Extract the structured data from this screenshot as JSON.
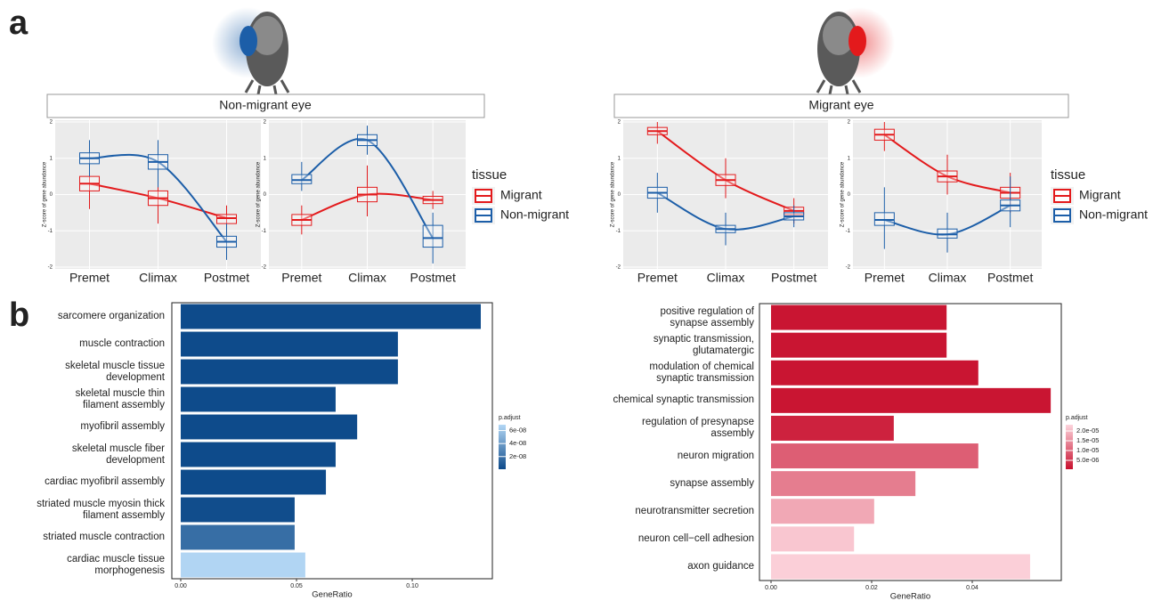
{
  "panel_labels": [
    "a",
    "b"
  ],
  "group_titles": [
    "Non-migrant eye",
    "Migrant eye"
  ],
  "chart_data": [
    {
      "type": "box",
      "categories": [
        "Premet",
        "Climax",
        "Postmet"
      ],
      "y_label": "Z-score of gene abundance",
      "ylim": [
        -2.05,
        2.05
      ],
      "yticks": [
        -2,
        -1,
        0,
        1,
        2
      ],
      "grid": true,
      "background": "#ebebeb",
      "series": [
        {
          "color": "#e31a1c",
          "values": [
            0.3,
            -0.1,
            -0.65
          ],
          "q1": [
            0.1,
            -0.3,
            -0.8
          ],
          "q3": [
            0.5,
            0.1,
            -0.55
          ],
          "whisker_low": [
            -0.4,
            -0.8,
            -1.0
          ],
          "whisker_high": [
            1.0,
            0.6,
            -0.3
          ]
        },
        {
          "color": "#1c5ea8",
          "values": [
            1.0,
            0.9,
            -1.3
          ],
          "q1": [
            0.85,
            0.7,
            -1.45
          ],
          "q3": [
            1.15,
            1.1,
            -1.15
          ],
          "whisker_low": [
            0.5,
            0.2,
            -1.8
          ],
          "whisker_high": [
            1.5,
            1.5,
            -0.8
          ]
        }
      ]
    },
    {
      "type": "box",
      "categories": [
        "Premet",
        "Climax",
        "Postmet"
      ],
      "y_label": "Z-score of gene abundance",
      "ylim": [
        -2.05,
        2.05
      ],
      "yticks": [
        -2,
        -1,
        0,
        1,
        2
      ],
      "grid": true,
      "background": "#ebebeb",
      "legend_title": "tissue",
      "series": [
        {
          "name": "Migrant",
          "color": "#e31a1c",
          "values": [
            -0.7,
            0.0,
            -0.15
          ],
          "q1": [
            -0.85,
            -0.2,
            -0.25
          ],
          "q3": [
            -0.55,
            0.2,
            -0.05
          ],
          "whisker_low": [
            -1.1,
            -0.6,
            -0.4
          ],
          "whisker_high": [
            -0.3,
            0.8,
            0.1
          ]
        },
        {
          "name": "Non-migrant",
          "color": "#1c5ea8",
          "values": [
            0.4,
            1.5,
            -1.2
          ],
          "q1": [
            0.3,
            1.35,
            -1.45
          ],
          "q3": [
            0.55,
            1.65,
            -0.85
          ],
          "whisker_low": [
            0.1,
            1.1,
            -1.9
          ],
          "whisker_high": [
            0.9,
            1.9,
            -0.5
          ]
        }
      ]
    },
    {
      "type": "box",
      "categories": [
        "Premet",
        "Climax",
        "Postmet"
      ],
      "y_label": "Z-score of gene abundance",
      "ylim": [
        -2.05,
        2.05
      ],
      "yticks": [
        -2,
        -1,
        0,
        1,
        2
      ],
      "grid": true,
      "background": "#ebebeb",
      "series": [
        {
          "color": "#e31a1c",
          "values": [
            1.75,
            0.4,
            -0.45
          ],
          "q1": [
            1.65,
            0.25,
            -0.55
          ],
          "q3": [
            1.85,
            0.55,
            -0.35
          ],
          "whisker_low": [
            1.4,
            -0.1,
            -0.8
          ],
          "whisker_high": [
            2.0,
            1.0,
            -0.1
          ]
        },
        {
          "color": "#1c5ea8",
          "values": [
            0.05,
            -0.95,
            -0.6
          ],
          "q1": [
            -0.1,
            -1.05,
            -0.7
          ],
          "q3": [
            0.2,
            -0.85,
            -0.5
          ],
          "whisker_low": [
            -0.5,
            -1.4,
            -0.9
          ],
          "whisker_high": [
            0.6,
            -0.5,
            -0.3
          ]
        }
      ]
    },
    {
      "type": "box",
      "categories": [
        "Premet",
        "Climax",
        "Postmet"
      ],
      "y_label": "Z-score of gene abundance",
      "ylim": [
        -2.05,
        2.05
      ],
      "yticks": [
        -2,
        -1,
        0,
        1,
        2
      ],
      "grid": true,
      "background": "#ebebeb",
      "legend_title": "tissue",
      "series": [
        {
          "name": "Migrant",
          "color": "#e31a1c",
          "values": [
            1.65,
            0.5,
            0.05
          ],
          "q1": [
            1.5,
            0.35,
            -0.1
          ],
          "q3": [
            1.8,
            0.65,
            0.2
          ],
          "whisker_low": [
            1.2,
            0.0,
            -0.5
          ],
          "whisker_high": [
            2.0,
            1.1,
            0.6
          ]
        },
        {
          "name": "Non-migrant",
          "color": "#1c5ea8",
          "values": [
            -0.7,
            -1.1,
            -0.3
          ],
          "q1": [
            -0.85,
            -1.2,
            -0.45
          ],
          "q3": [
            -0.5,
            -0.95,
            -0.15
          ],
          "whisker_low": [
            -1.5,
            -1.6,
            -0.9
          ],
          "whisker_high": [
            0.2,
            -0.5,
            0.5
          ]
        }
      ]
    },
    {
      "type": "barh",
      "categories": [
        "sarcomere organization",
        "muscle contraction",
        "skeletal muscle tissue\ndevelopment",
        "skeletal muscle thin\nfilament assembly",
        "myofibril assembly",
        "skeletal muscle fiber\ndevelopment",
        "cardiac myofibril assembly",
        "striated muscle myosin thick\nfilament assembly",
        "striated muscle contraction",
        "cardiac muscle tissue\nmorphogenesis"
      ],
      "values": [
        0.1296,
        0.0938,
        0.0938,
        0.0669,
        0.0762,
        0.0669,
        0.0627,
        0.0492,
        0.0492,
        0.0538
      ],
      "p_adjust": [
        1e-09,
        1e-09,
        1e-09,
        1e-09,
        1e-09,
        1e-09,
        1e-09,
        2e-09,
        1.8e-08,
        6.8e-08
      ],
      "x_label": "GeneRatio",
      "xlim": [
        -0.00385,
        0.1346
      ],
      "xticks": [
        {
          "value": 0,
          "label": "0.00"
        },
        {
          "value": 0.05,
          "label": "0.05"
        },
        {
          "value": 0.1,
          "label": "0.10"
        }
      ],
      "color_scale": {
        "title": "p.adjust",
        "low": "#0d4a8a",
        "high": "#b3d7f5",
        "lim": [
          5e-10,
          6.9e-08
        ],
        "ticks": [
          {
            "value": 6e-08,
            "label": "6e-08"
          },
          {
            "value": 4e-08,
            "label": "4e-08"
          },
          {
            "value": 2e-08,
            "label": "2e-08"
          }
        ]
      }
    },
    {
      "type": "barh",
      "categories": [
        "positive regulation of\nsynapse assembly",
        "synaptic transmission,\nglutamatergic",
        "modulation of chemical\nsynaptic transmission",
        "chemical synaptic transmission",
        "regulation of presynapse\nassembly",
        "neuron migration",
        "synapse assembly",
        "neurotransmitter secretion",
        "neuron cell−cell adhesion",
        "axon guidance"
      ],
      "values": [
        0.0349,
        0.0349,
        0.0412,
        0.0556,
        0.0244,
        0.0412,
        0.0287,
        0.0205,
        0.0165,
        0.0515
      ],
      "p_adjust": [
        1e-06,
        1e-06,
        1e-06,
        1e-06,
        2.5e-06,
        9.5e-06,
        1.3e-05,
        1.8e-05,
        2.15e-05,
        2.25e-05
      ],
      "x_label": "GeneRatio",
      "xlim": [
        -0.0023,
        0.0577
      ],
      "xticks": [
        {
          "value": 0,
          "label": "0.00"
        },
        {
          "value": 0.02,
          "label": "0.02"
        },
        {
          "value": 0.04,
          "label": "0.04"
        }
      ],
      "color_scale": {
        "title": "p.adjust",
        "low": "#c8102e",
        "high": "#fdd5dd",
        "lim": [
          4.5e-07,
          2.32e-05
        ],
        "ticks": [
          {
            "value": 2e-05,
            "label": "2.0e-05"
          },
          {
            "value": 1.5e-05,
            "label": "1.5e-05"
          },
          {
            "value": 1e-05,
            "label": "1.0e-05"
          },
          {
            "value": 5e-06,
            "label": "5.0e-06"
          }
        ]
      }
    }
  ]
}
